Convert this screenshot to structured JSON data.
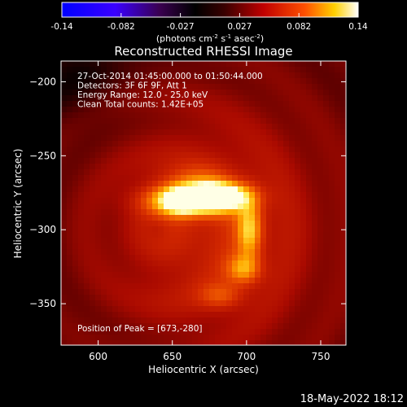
{
  "chart_data": {
    "type": "heatmap",
    "title": "Reconstructed RHESSI Image",
    "xlabel": "Heliocentric X (arcsec)",
    "ylabel": "Heliocentric Y (arcsec)",
    "xlim": [
      575,
      767
    ],
    "ylim": [
      -378,
      -186
    ],
    "x_ticks": [
      600,
      650,
      700,
      750
    ],
    "y_ticks": [
      -200,
      -250,
      -300,
      -350
    ],
    "colorbar": {
      "min": -0.14,
      "max": 0.14,
      "ticks": [
        "-0.14",
        "-0.082",
        "-0.027",
        "0.027",
        "0.082",
        "0.14"
      ],
      "label_html": "(photons cm<tspan dy='-4' font-size='7'>-2</tspan><tspan dy='4'> s</tspan><tspan dy='-4' font-size='7'>-1</tspan><tspan dy='4'> asec</tspan><tspan dy='-4' font-size='7'>-2</tspan><tspan dy='4'>)</tspan>",
      "colormap": "rhessi-hot"
    },
    "annotations": [
      "27-Oct-2014 01:45:00.000 to 01:50:44.000",
      "Detectors: 3F 6F 9F, Att 1",
      "Energy Range: 12.0 - 25.0 keV",
      "Clean    Total counts: 1.42E+05"
    ],
    "peak_text": "Position of Peak = [673,-280]",
    "peak": [
      673,
      -280
    ],
    "sources": [
      {
        "x": 663,
        "y": -280,
        "sx": 20,
        "sy": 7,
        "amp": 0.75
      },
      {
        "x": 683,
        "y": -277,
        "sx": 14,
        "sy": 6,
        "amp": 0.55
      },
      {
        "x": 655,
        "y": -281,
        "sx": 8,
        "sy": 6,
        "amp": 0.25
      },
      {
        "x": 702,
        "y": -300,
        "sx": 6,
        "sy": 14,
        "amp": 0.45
      },
      {
        "x": 698,
        "y": -327,
        "sx": 8,
        "sy": 7,
        "amp": 0.35
      },
      {
        "x": 683,
        "y": -345,
        "sx": 10,
        "sy": 6,
        "amp": 0.22
      },
      {
        "x": 665,
        "y": -268,
        "sx": 16,
        "sy": 8,
        "amp": 0.2
      }
    ],
    "background_level": 0.2
  },
  "footer": {
    "timestamp": "18-May-2022 18:12"
  }
}
